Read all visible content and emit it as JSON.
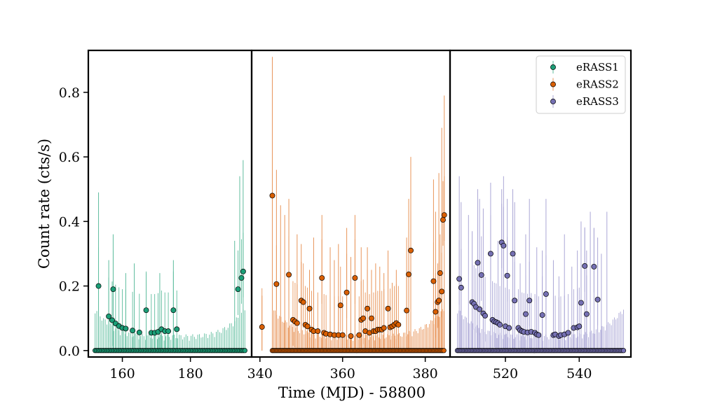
{
  "chart_data": {
    "type": "scatter",
    "title": "",
    "xlabel": "Time (MJD) - 58800",
    "ylabel": "Count rate (cts/s)",
    "ylim": [
      -0.02,
      0.93
    ],
    "yticks": [
      0.0,
      0.2,
      0.4,
      0.6,
      0.8
    ],
    "ytick_labels": [
      "0.0",
      "0.2",
      "0.4",
      "0.6",
      "0.8"
    ],
    "legend_position": "top-right",
    "panels": [
      {
        "name": "eRASS1",
        "color": "#1b9e77",
        "error_color": "#5fbd9e",
        "xlim": [
          150,
          198
        ],
        "xticks": [
          160,
          180
        ],
        "xtick_labels": [
          "160",
          "180"
        ],
        "x_start": 152,
        "x_end": 196,
        "n_zero": 90,
        "points": [
          {
            "x": 153,
            "y": 0.2
          },
          {
            "x": 156,
            "y": 0.106
          },
          {
            "x": 157,
            "y": 0.094
          },
          {
            "x": 157.3,
            "y": 0.19
          },
          {
            "x": 158,
            "y": 0.084
          },
          {
            "x": 159,
            "y": 0.076
          },
          {
            "x": 160,
            "y": 0.07
          },
          {
            "x": 161,
            "y": 0.068
          },
          {
            "x": 163,
            "y": 0.062
          },
          {
            "x": 165,
            "y": 0.056
          },
          {
            "x": 167,
            "y": 0.125
          },
          {
            "x": 168.5,
            "y": 0.055
          },
          {
            "x": 169.5,
            "y": 0.055
          },
          {
            "x": 170.5,
            "y": 0.058
          },
          {
            "x": 171.5,
            "y": 0.066
          },
          {
            "x": 172.5,
            "y": 0.06
          },
          {
            "x": 173.5,
            "y": 0.06
          },
          {
            "x": 175,
            "y": 0.125
          },
          {
            "x": 176,
            "y": 0.066
          },
          {
            "x": 194,
            "y": 0.19
          },
          {
            "x": 195,
            "y": 0.225
          },
          {
            "x": 195.5,
            "y": 0.245
          }
        ],
        "spikes": [
          {
            "x": 153,
            "y": 0.49
          },
          {
            "x": 156,
            "y": 0.28
          },
          {
            "x": 157.3,
            "y": 0.36
          },
          {
            "x": 161,
            "y": 0.24
          },
          {
            "x": 163.5,
            "y": 0.27
          },
          {
            "x": 167,
            "y": 0.24
          },
          {
            "x": 171,
            "y": 0.24
          },
          {
            "x": 175,
            "y": 0.28
          },
          {
            "x": 193,
            "y": 0.34
          },
          {
            "x": 194.5,
            "y": 0.54
          },
          {
            "x": 195.5,
            "y": 0.59
          }
        ]
      },
      {
        "name": "eRASS2",
        "color": "#d95f02",
        "error_color": "#e8955a",
        "xlim": [
          338,
          386
        ],
        "xticks": [
          340,
          360,
          380
        ],
        "xtick_labels": [
          "340",
          "360",
          "380"
        ],
        "x_start": 343,
        "x_end": 384.5,
        "n_zero": 120,
        "points": [
          {
            "x": 340.5,
            "y": 0.073
          },
          {
            "x": 343,
            "y": 0.48
          },
          {
            "x": 344,
            "y": 0.206
          },
          {
            "x": 347,
            "y": 0.235
          },
          {
            "x": 348,
            "y": 0.095
          },
          {
            "x": 348.5,
            "y": 0.09
          },
          {
            "x": 349,
            "y": 0.085
          },
          {
            "x": 350,
            "y": 0.155
          },
          {
            "x": 350.5,
            "y": 0.15
          },
          {
            "x": 351,
            "y": 0.08
          },
          {
            "x": 351.5,
            "y": 0.075
          },
          {
            "x": 352,
            "y": 0.13
          },
          {
            "x": 352.5,
            "y": 0.065
          },
          {
            "x": 353,
            "y": 0.06
          },
          {
            "x": 354,
            "y": 0.06
          },
          {
            "x": 355,
            "y": 0.225
          },
          {
            "x": 355.5,
            "y": 0.055
          },
          {
            "x": 356,
            "y": 0.052
          },
          {
            "x": 357,
            "y": 0.05
          },
          {
            "x": 358,
            "y": 0.048
          },
          {
            "x": 359,
            "y": 0.048
          },
          {
            "x": 359.5,
            "y": 0.14
          },
          {
            "x": 360,
            "y": 0.048
          },
          {
            "x": 361,
            "y": 0.18
          },
          {
            "x": 362,
            "y": 0.045
          },
          {
            "x": 363,
            "y": 0.225
          },
          {
            "x": 364,
            "y": 0.048
          },
          {
            "x": 364.5,
            "y": 0.095
          },
          {
            "x": 365,
            "y": 0.1
          },
          {
            "x": 365.5,
            "y": 0.06
          },
          {
            "x": 366,
            "y": 0.13
          },
          {
            "x": 366.5,
            "y": 0.055
          },
          {
            "x": 367,
            "y": 0.1
          },
          {
            "x": 367.5,
            "y": 0.06
          },
          {
            "x": 368,
            "y": 0.06
          },
          {
            "x": 368.5,
            "y": 0.065
          },
          {
            "x": 369,
            "y": 0.065
          },
          {
            "x": 369.5,
            "y": 0.065
          },
          {
            "x": 370,
            "y": 0.07
          },
          {
            "x": 371,
            "y": 0.13
          },
          {
            "x": 371.5,
            "y": 0.072
          },
          {
            "x": 372,
            "y": 0.075
          },
          {
            "x": 372.5,
            "y": 0.08
          },
          {
            "x": 373,
            "y": 0.085
          },
          {
            "x": 373.5,
            "y": 0.08
          },
          {
            "x": 375.5,
            "y": 0.124
          },
          {
            "x": 376,
            "y": 0.236
          },
          {
            "x": 376.5,
            "y": 0.31
          },
          {
            "x": 382,
            "y": 0.215
          },
          {
            "x": 382.5,
            "y": 0.12
          },
          {
            "x": 383,
            "y": 0.15
          },
          {
            "x": 383.3,
            "y": 0.155
          },
          {
            "x": 383.6,
            "y": 0.24
          },
          {
            "x": 384,
            "y": 0.183
          },
          {
            "x": 384.3,
            "y": 0.405
          },
          {
            "x": 384.6,
            "y": 0.42
          }
        ],
        "spikes": [
          {
            "x": 340.5,
            "y": 0.17
          },
          {
            "x": 343,
            "y": 0.91
          },
          {
            "x": 344,
            "y": 0.56
          },
          {
            "x": 345,
            "y": 0.45
          },
          {
            "x": 346,
            "y": 0.42
          },
          {
            "x": 347,
            "y": 0.47
          },
          {
            "x": 349,
            "y": 0.36
          },
          {
            "x": 350,
            "y": 0.33
          },
          {
            "x": 352,
            "y": 0.25
          },
          {
            "x": 353,
            "y": 0.35
          },
          {
            "x": 355,
            "y": 0.42
          },
          {
            "x": 357,
            "y": 0.32
          },
          {
            "x": 358,
            "y": 0.28
          },
          {
            "x": 359,
            "y": 0.33
          },
          {
            "x": 361,
            "y": 0.38
          },
          {
            "x": 362,
            "y": 0.29
          },
          {
            "x": 363,
            "y": 0.42
          },
          {
            "x": 364.5,
            "y": 0.32
          },
          {
            "x": 366,
            "y": 0.32
          },
          {
            "x": 367,
            "y": 0.25
          },
          {
            "x": 368,
            "y": 0.27
          },
          {
            "x": 369,
            "y": 0.26
          },
          {
            "x": 370,
            "y": 0.24
          },
          {
            "x": 371,
            "y": 0.31
          },
          {
            "x": 372,
            "y": 0.21
          },
          {
            "x": 373,
            "y": 0.25
          },
          {
            "x": 375.5,
            "y": 0.35
          },
          {
            "x": 376,
            "y": 0.47
          },
          {
            "x": 376.5,
            "y": 0.6
          },
          {
            "x": 382,
            "y": 0.53
          },
          {
            "x": 382.5,
            "y": 0.43
          },
          {
            "x": 383.3,
            "y": 0.55
          },
          {
            "x": 384,
            "y": 0.69
          },
          {
            "x": 384.6,
            "y": 0.79
          }
        ]
      },
      {
        "name": "eRASS3",
        "color": "#7570b3",
        "error_color": "#aba7d6",
        "xlim": [
          505,
          554
        ],
        "xticks": [
          520,
          540
        ],
        "xtick_labels": [
          "520",
          "540"
        ],
        "x_start": 507,
        "x_end": 552,
        "n_zero": 110,
        "points": [
          {
            "x": 507.5,
            "y": 0.222
          },
          {
            "x": 508,
            "y": 0.195
          },
          {
            "x": 511,
            "y": 0.15
          },
          {
            "x": 511.5,
            "y": 0.145
          },
          {
            "x": 512,
            "y": 0.135
          },
          {
            "x": 512.5,
            "y": 0.272
          },
          {
            "x": 513,
            "y": 0.128
          },
          {
            "x": 513.5,
            "y": 0.234
          },
          {
            "x": 514,
            "y": 0.115
          },
          {
            "x": 514.5,
            "y": 0.108
          },
          {
            "x": 516,
            "y": 0.3
          },
          {
            "x": 516.5,
            "y": 0.095
          },
          {
            "x": 517,
            "y": 0.09
          },
          {
            "x": 517.5,
            "y": 0.088
          },
          {
            "x": 518,
            "y": 0.085
          },
          {
            "x": 518.5,
            "y": 0.08
          },
          {
            "x": 519,
            "y": 0.335
          },
          {
            "x": 519.5,
            "y": 0.325
          },
          {
            "x": 520,
            "y": 0.075
          },
          {
            "x": 520.5,
            "y": 0.232
          },
          {
            "x": 521,
            "y": 0.07
          },
          {
            "x": 522,
            "y": 0.3
          },
          {
            "x": 522.5,
            "y": 0.155
          },
          {
            "x": 523.5,
            "y": 0.07
          },
          {
            "x": 524,
            "y": 0.063
          },
          {
            "x": 524.5,
            "y": 0.06
          },
          {
            "x": 525,
            "y": 0.058
          },
          {
            "x": 525.5,
            "y": 0.113
          },
          {
            "x": 526,
            "y": 0.056
          },
          {
            "x": 526.5,
            "y": 0.155
          },
          {
            "x": 527,
            "y": 0.058
          },
          {
            "x": 528,
            "y": 0.055
          },
          {
            "x": 528.5,
            "y": 0.05
          },
          {
            "x": 529,
            "y": 0.048
          },
          {
            "x": 530,
            "y": 0.11
          },
          {
            "x": 531,
            "y": 0.175
          },
          {
            "x": 533,
            "y": 0.048
          },
          {
            "x": 533.5,
            "y": 0.05
          },
          {
            "x": 534.5,
            "y": 0.045
          },
          {
            "x": 535,
            "y": 0.048
          },
          {
            "x": 536,
            "y": 0.05
          },
          {
            "x": 537,
            "y": 0.055
          },
          {
            "x": 538.5,
            "y": 0.07
          },
          {
            "x": 539.5,
            "y": 0.072
          },
          {
            "x": 540,
            "y": 0.075
          },
          {
            "x": 540.5,
            "y": 0.148
          },
          {
            "x": 541.5,
            "y": 0.262
          },
          {
            "x": 542,
            "y": 0.113
          },
          {
            "x": 544,
            "y": 0.26
          },
          {
            "x": 545,
            "y": 0.158
          }
        ],
        "spikes": [
          {
            "x": 507.5,
            "y": 0.54
          },
          {
            "x": 508,
            "y": 0.46
          },
          {
            "x": 510,
            "y": 0.42
          },
          {
            "x": 511,
            "y": 0.37
          },
          {
            "x": 512.5,
            "y": 0.5
          },
          {
            "x": 513,
            "y": 0.47
          },
          {
            "x": 514,
            "y": 0.44
          },
          {
            "x": 516,
            "y": 0.52
          },
          {
            "x": 518,
            "y": 0.34
          },
          {
            "x": 519,
            "y": 0.5
          },
          {
            "x": 519.5,
            "y": 0.54
          },
          {
            "x": 520.5,
            "y": 0.47
          },
          {
            "x": 522,
            "y": 0.5
          },
          {
            "x": 522.5,
            "y": 0.46
          },
          {
            "x": 524,
            "y": 0.27
          },
          {
            "x": 525.5,
            "y": 0.36
          },
          {
            "x": 526.5,
            "y": 0.47
          },
          {
            "x": 528.5,
            "y": 0.32
          },
          {
            "x": 530,
            "y": 0.31
          },
          {
            "x": 531,
            "y": 0.47
          },
          {
            "x": 533,
            "y": 0.28
          },
          {
            "x": 534.5,
            "y": 0.23
          },
          {
            "x": 536,
            "y": 0.36
          },
          {
            "x": 538,
            "y": 0.26
          },
          {
            "x": 539.5,
            "y": 0.31
          },
          {
            "x": 540.5,
            "y": 0.4
          },
          {
            "x": 541.5,
            "y": 0.38
          },
          {
            "x": 542,
            "y": 0.31
          },
          {
            "x": 543,
            "y": 0.43
          },
          {
            "x": 544,
            "y": 0.38
          },
          {
            "x": 545,
            "y": 0.35
          },
          {
            "x": 546,
            "y": 0.3
          },
          {
            "x": 547.5,
            "y": 0.43
          }
        ]
      }
    ]
  }
}
